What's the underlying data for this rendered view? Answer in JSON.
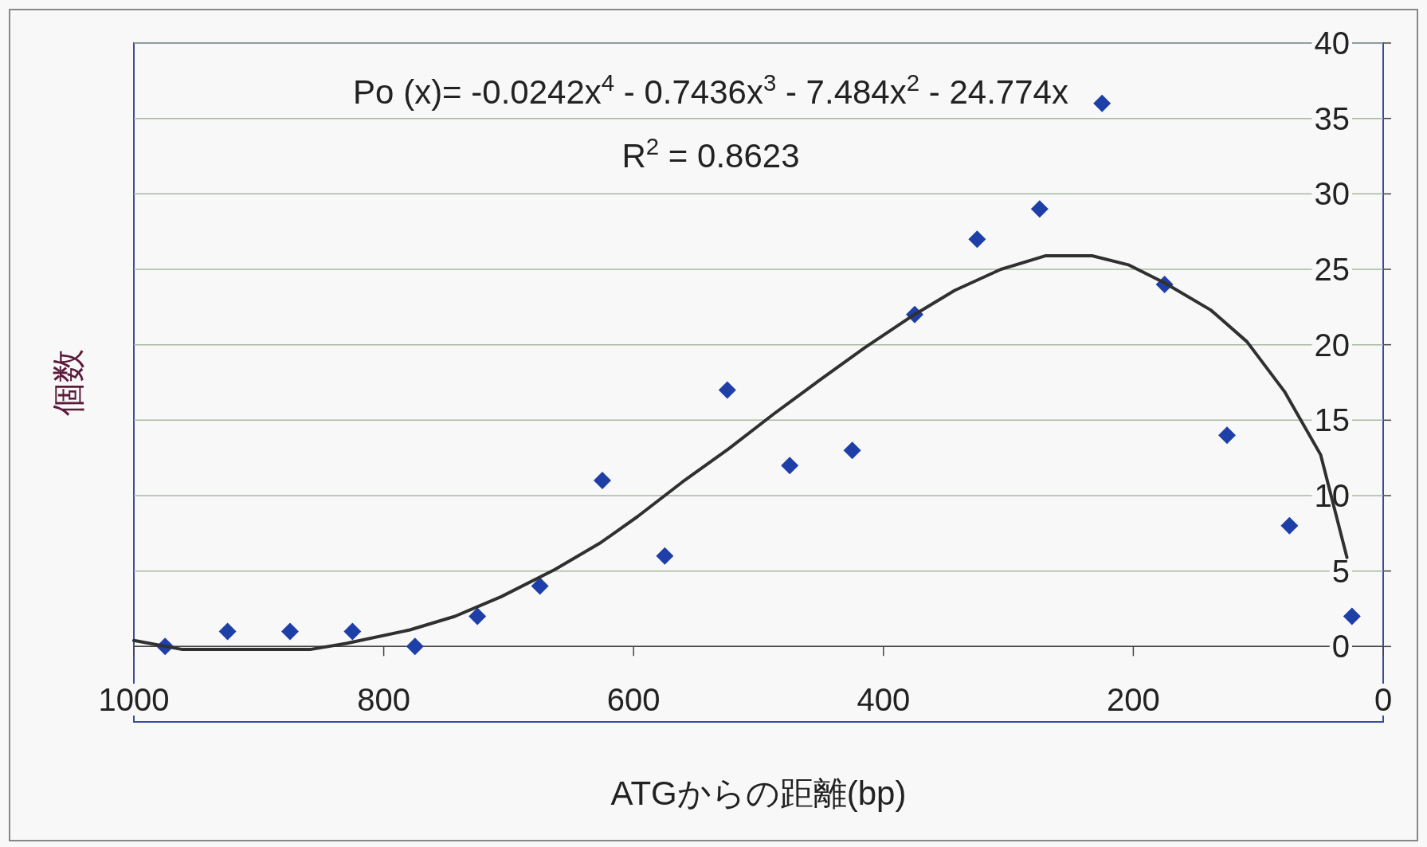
{
  "chart_data": {
    "type": "scatter",
    "xlabel": "ATGからの距離(bp)",
    "ylabel": "個数",
    "x": [
      975,
      925,
      875,
      825,
      775,
      725,
      675,
      625,
      575,
      525,
      475,
      425,
      375,
      325,
      275,
      225,
      175,
      125,
      75,
      25
    ],
    "xlim": [
      1000,
      0
    ],
    "xticks": [
      1000,
      800,
      600,
      400,
      200,
      0
    ],
    "ylim": [
      -5,
      40
    ],
    "yticks": [
      0,
      5,
      10,
      15,
      20,
      25,
      30,
      35,
      40
    ],
    "grid": "y",
    "marker": "diamond",
    "series": [
      {
        "color": "#1f3fa8",
        "values": [
          0,
          1,
          1,
          1,
          0,
          2,
          4,
          11,
          6,
          17,
          12,
          13,
          22,
          27,
          29,
          36,
          24,
          14,
          8,
          2
        ]
      },
      {
        "type": "line",
        "marker": "none",
        "color": "#303030",
        "x": [
          1000,
          961,
          932,
          859,
          830,
          779,
          743,
          706,
          663,
          626,
          597,
          561,
          524,
          488,
          452,
          415,
          379,
          343,
          306,
          270,
          233,
          204,
          175,
          138,
          109,
          79,
          50,
          29
        ],
        "values": [
          0.4,
          -0.2,
          -0.2,
          -0.2,
          0.2,
          1.1,
          2,
          3.3,
          5.1,
          6.9,
          8.6,
          10.9,
          13.1,
          15.4,
          17.6,
          19.8,
          21.8,
          23.6,
          25,
          25.9,
          25.9,
          25.3,
          24.1,
          22.3,
          20.2,
          16.9,
          12.7,
          5.9
        ]
      }
    ],
    "annotations": [
      "Po (x)= -0.0242x$^{4}$ - 0.7436x$^{3}$ - 7.484x$^{2}$ - 24.774x",
      "R$^{2}$ = 0.8623"
    ]
  }
}
